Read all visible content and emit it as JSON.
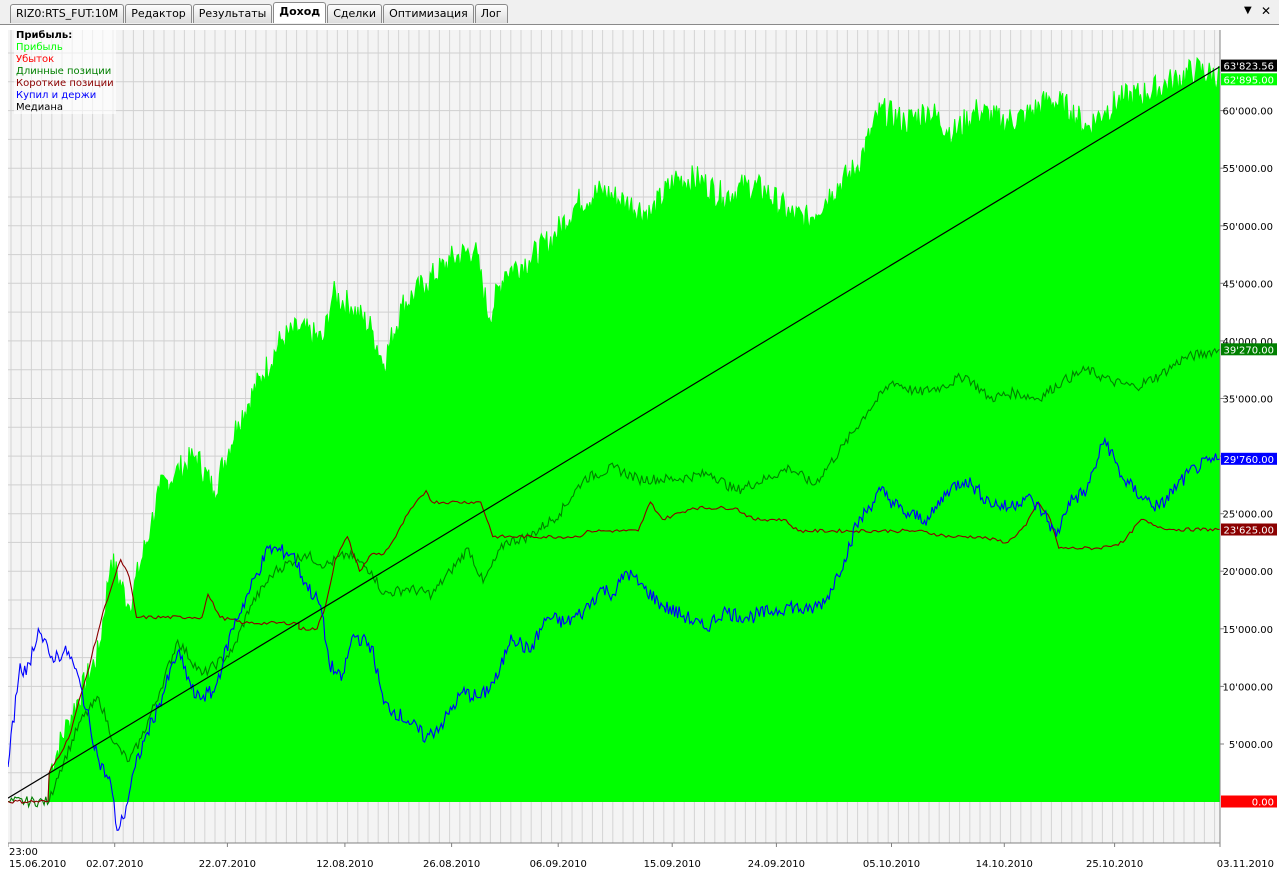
{
  "tabs": [
    {
      "label": "RIZ0:RTS_FUT:10M",
      "active": false
    },
    {
      "label": "Редактор",
      "active": false
    },
    {
      "label": "Результаты",
      "active": false
    },
    {
      "label": "Доход",
      "active": true
    },
    {
      "label": "Сделки",
      "active": false
    },
    {
      "label": "Оптимизация",
      "active": false
    },
    {
      "label": "Лог",
      "active": false
    }
  ],
  "controls": {
    "dropdown_icon": "chevron-down-icon",
    "close_icon": "close-icon"
  },
  "chart_data": {
    "type": "area",
    "legend": {
      "title": "Прибыль:",
      "placement": "top-left",
      "items": [
        {
          "label": "Прибыль",
          "color": "#00ff00"
        },
        {
          "label": "Убыток",
          "color": "#ff0000"
        },
        {
          "label": "Длинные позиции",
          "color": "#008000"
        },
        {
          "label": "Короткие позиции",
          "color": "#8b0000"
        },
        {
          "label": "Купил и держи",
          "color": "#0000ff"
        },
        {
          "label": "Медиана",
          "color": "#000000"
        }
      ]
    },
    "ylim": [
      -3600,
      67000
    ],
    "y_ticks": [
      "5'000.00",
      "10'000.00",
      "15'000.00",
      "20'000.00",
      "25'000.00",
      "30'000.00",
      "35'000.00",
      "40'000.00",
      "45'000.00",
      "50'000.00",
      "55'000.00",
      "60'000.00"
    ],
    "x_time_label": "23:00",
    "x_labels": [
      "15.06.2010",
      "02.07.2010",
      "22.07.2010",
      "12.08.2010",
      "26.08.2010",
      "06.09.2010",
      "15.09.2010",
      "24.09.2010",
      "05.10.2010",
      "14.10.2010",
      "25.10.2010",
      "03.11.2010"
    ],
    "x_positions": [
      0,
      0.088,
      0.181,
      0.278,
      0.366,
      0.454,
      0.548,
      0.634,
      0.729,
      0.822,
      0.913,
      1
    ],
    "last_values": [
      {
        "text": "63'823.56",
        "value": 63823.56,
        "bg": "#000000",
        "fg": "#ffffff"
      },
      {
        "text": "62'895.00",
        "value": 62895,
        "bg": "#00ff00",
        "fg": "#ffffff"
      },
      {
        "text": "39'270.00",
        "value": 39270,
        "bg": "#008000",
        "fg": "#ffffff"
      },
      {
        "text": "29'760.00",
        "value": 29760,
        "bg": "#0000ff",
        "fg": "#ffffff"
      },
      {
        "text": "23'625.00",
        "value": 23625,
        "bg": "#8b0000",
        "fg": "#ffffff"
      },
      {
        "text": "0.00",
        "value": 0,
        "bg": "#ff0000",
        "fg": "#ffffff"
      }
    ],
    "series": [
      {
        "name": "Прибыль",
        "color": "#00ff00",
        "points": [
          [
            0.033,
            0
          ],
          [
            0.034,
            2500
          ],
          [
            0.05,
            7000
          ],
          [
            0.075,
            13000
          ],
          [
            0.085,
            21000
          ],
          [
            0.1,
            17000
          ],
          [
            0.118,
            24000
          ],
          [
            0.125,
            27000
          ],
          [
            0.138,
            28500
          ],
          [
            0.155,
            30000
          ],
          [
            0.17,
            27000
          ],
          [
            0.19,
            33000
          ],
          [
            0.21,
            37000
          ],
          [
            0.225,
            40000
          ],
          [
            0.24,
            41000
          ],
          [
            0.26,
            40000
          ],
          [
            0.268,
            44000
          ],
          [
            0.283,
            43000
          ],
          [
            0.3,
            41000
          ],
          [
            0.31,
            38000
          ],
          [
            0.325,
            43000
          ],
          [
            0.345,
            45000
          ],
          [
            0.365,
            47000
          ],
          [
            0.385,
            48000
          ],
          [
            0.397,
            42000
          ],
          [
            0.41,
            46000
          ],
          [
            0.43,
            47000
          ],
          [
            0.45,
            49000
          ],
          [
            0.47,
            52000
          ],
          [
            0.49,
            53000
          ],
          [
            0.51,
            52000
          ],
          [
            0.53,
            51000
          ],
          [
            0.55,
            54000
          ],
          [
            0.57,
            54000
          ],
          [
            0.59,
            52500
          ],
          [
            0.61,
            53500
          ],
          [
            0.625,
            53000
          ],
          [
            0.645,
            51000
          ],
          [
            0.66,
            50500
          ],
          [
            0.68,
            53000
          ],
          [
            0.7,
            55000
          ],
          [
            0.72,
            60000
          ],
          [
            0.74,
            59000
          ],
          [
            0.76,
            60000
          ],
          [
            0.78,
            58000
          ],
          [
            0.8,
            60000
          ],
          [
            0.82,
            59000
          ],
          [
            0.84,
            59500
          ],
          [
            0.86,
            61000
          ],
          [
            0.877,
            60000
          ],
          [
            0.89,
            58500
          ],
          [
            0.905,
            60000
          ],
          [
            0.92,
            61000
          ],
          [
            0.94,
            61500
          ],
          [
            0.96,
            62500
          ],
          [
            0.98,
            63500
          ],
          [
            1,
            62895
          ]
        ]
      },
      {
        "name": "Длинные позиции",
        "color": "#008000",
        "points": [
          [
            0,
            0
          ],
          [
            0.034,
            0
          ],
          [
            0.04,
            2000
          ],
          [
            0.06,
            7000
          ],
          [
            0.075,
            9000
          ],
          [
            0.088,
            5000
          ],
          [
            0.1,
            3500
          ],
          [
            0.11,
            5500
          ],
          [
            0.125,
            9500
          ],
          [
            0.14,
            14000
          ],
          [
            0.16,
            11000
          ],
          [
            0.185,
            13000
          ],
          [
            0.2,
            17000
          ],
          [
            0.22,
            20000
          ],
          [
            0.245,
            21500
          ],
          [
            0.262,
            20500
          ],
          [
            0.28,
            21500
          ],
          [
            0.3,
            20000
          ],
          [
            0.31,
            18000
          ],
          [
            0.33,
            18500
          ],
          [
            0.35,
            18000
          ],
          [
            0.365,
            20000
          ],
          [
            0.38,
            22000
          ],
          [
            0.392,
            19000
          ],
          [
            0.41,
            22500
          ],
          [
            0.43,
            23000
          ],
          [
            0.455,
            25000
          ],
          [
            0.475,
            28000
          ],
          [
            0.5,
            29000
          ],
          [
            0.52,
            28000
          ],
          [
            0.55,
            28000
          ],
          [
            0.58,
            28500
          ],
          [
            0.6,
            27000
          ],
          [
            0.625,
            28000
          ],
          [
            0.645,
            29000
          ],
          [
            0.665,
            27500
          ],
          [
            0.69,
            31000
          ],
          [
            0.71,
            34000
          ],
          [
            0.73,
            36500
          ],
          [
            0.75,
            35500
          ],
          [
            0.77,
            36000
          ],
          [
            0.79,
            37000
          ],
          [
            0.81,
            35000
          ],
          [
            0.83,
            35500
          ],
          [
            0.85,
            35000
          ],
          [
            0.87,
            36500
          ],
          [
            0.89,
            37500
          ],
          [
            0.91,
            36500
          ],
          [
            0.93,
            36000
          ],
          [
            0.95,
            37000
          ],
          [
            0.97,
            38500
          ],
          [
            1,
            39270
          ]
        ]
      },
      {
        "name": "Короткие позиции",
        "color": "#8b0000",
        "points": [
          [
            0,
            0
          ],
          [
            0.033,
            0
          ],
          [
            0.034,
            2500
          ],
          [
            0.05,
            5500
          ],
          [
            0.065,
            11000
          ],
          [
            0.08,
            17000
          ],
          [
            0.093,
            21000
          ],
          [
            0.1,
            19500
          ],
          [
            0.106,
            16000
          ],
          [
            0.15,
            16000
          ],
          [
            0.16,
            16000
          ],
          [
            0.165,
            18000
          ],
          [
            0.175,
            16000
          ],
          [
            0.195,
            15500
          ],
          [
            0.24,
            15500
          ],
          [
            0.24,
            15000
          ],
          [
            0.255,
            15000
          ],
          [
            0.262,
            17000
          ],
          [
            0.27,
            21000
          ],
          [
            0.28,
            23000
          ],
          [
            0.29,
            20000
          ],
          [
            0.3,
            21500
          ],
          [
            0.31,
            21500
          ],
          [
            0.32,
            23000
          ],
          [
            0.33,
            25000
          ],
          [
            0.345,
            27000
          ],
          [
            0.35,
            26000
          ],
          [
            0.365,
            26000
          ],
          [
            0.39,
            26000
          ],
          [
            0.397,
            24000
          ],
          [
            0.4,
            23000
          ],
          [
            0.47,
            23000
          ],
          [
            0.48,
            23500
          ],
          [
            0.495,
            23500
          ],
          [
            0.51,
            23500
          ],
          [
            0.52,
            23500
          ],
          [
            0.53,
            26000
          ],
          [
            0.54,
            24500
          ],
          [
            0.565,
            25500
          ],
          [
            0.6,
            25500
          ],
          [
            0.615,
            24500
          ],
          [
            0.64,
            24500
          ],
          [
            0.652,
            23500
          ],
          [
            0.7,
            23500
          ],
          [
            0.73,
            23500
          ],
          [
            0.75,
            23500
          ],
          [
            0.778,
            23000
          ],
          [
            0.8,
            23000
          ],
          [
            0.825,
            22500
          ],
          [
            0.84,
            24000
          ],
          [
            0.85,
            26000
          ],
          [
            0.86,
            24500
          ],
          [
            0.867,
            22000
          ],
          [
            0.9,
            22000
          ],
          [
            0.92,
            22500
          ],
          [
            0.935,
            24500
          ],
          [
            0.945,
            24000
          ],
          [
            0.96,
            23625
          ],
          [
            1,
            23625
          ]
        ]
      },
      {
        "name": "Купил и держи",
        "color": "#0000ff",
        "points": [
          [
            0,
            3000
          ],
          [
            0.01,
            12000
          ],
          [
            0.015,
            11000
          ],
          [
            0.025,
            15000
          ],
          [
            0.035,
            12500
          ],
          [
            0.05,
            13000
          ],
          [
            0.06,
            10000
          ],
          [
            0.075,
            3500
          ],
          [
            0.085,
            1500
          ],
          [
            0.09,
            -2500
          ],
          [
            0.095,
            -1500
          ],
          [
            0.105,
            3000
          ],
          [
            0.115,
            6000
          ],
          [
            0.125,
            8500
          ],
          [
            0.14,
            13000
          ],
          [
            0.155,
            9000
          ],
          [
            0.17,
            9500
          ],
          [
            0.185,
            15000
          ],
          [
            0.2,
            18500
          ],
          [
            0.215,
            22000
          ],
          [
            0.235,
            21500
          ],
          [
            0.245,
            19000
          ],
          [
            0.258,
            17000
          ],
          [
            0.265,
            12000
          ],
          [
            0.275,
            10500
          ],
          [
            0.285,
            14500
          ],
          [
            0.3,
            13500
          ],
          [
            0.31,
            8500
          ],
          [
            0.33,
            7000
          ],
          [
            0.345,
            5500
          ],
          [
            0.36,
            7000
          ],
          [
            0.375,
            9500
          ],
          [
            0.39,
            9000
          ],
          [
            0.405,
            11000
          ],
          [
            0.415,
            14500
          ],
          [
            0.43,
            13000
          ],
          [
            0.445,
            16000
          ],
          [
            0.46,
            15500
          ],
          [
            0.475,
            16500
          ],
          [
            0.49,
            18500
          ],
          [
            0.5,
            18000
          ],
          [
            0.51,
            20000
          ],
          [
            0.525,
            18500
          ],
          [
            0.54,
            17000
          ],
          [
            0.56,
            16000
          ],
          [
            0.575,
            15000
          ],
          [
            0.59,
            16500
          ],
          [
            0.61,
            16000
          ],
          [
            0.63,
            16500
          ],
          [
            0.645,
            17000
          ],
          [
            0.66,
            16500
          ],
          [
            0.675,
            17500
          ],
          [
            0.69,
            21000
          ],
          [
            0.7,
            24000
          ],
          [
            0.72,
            27000
          ],
          [
            0.74,
            25000
          ],
          [
            0.76,
            24500
          ],
          [
            0.775,
            27000
          ],
          [
            0.79,
            28000
          ],
          [
            0.81,
            26000
          ],
          [
            0.825,
            25500
          ],
          [
            0.84,
            26500
          ],
          [
            0.855,
            25000
          ],
          [
            0.865,
            23000
          ],
          [
            0.875,
            26000
          ],
          [
            0.89,
            27000
          ],
          [
            0.905,
            31500
          ],
          [
            0.92,
            28000
          ],
          [
            0.935,
            26500
          ],
          [
            0.95,
            25500
          ],
          [
            0.965,
            27500
          ],
          [
            0.98,
            29000
          ],
          [
            1,
            29760
          ]
        ]
      },
      {
        "name": "Медиана",
        "color": "#000000",
        "points": [
          [
            0,
            300
          ],
          [
            1,
            63823.56
          ]
        ]
      }
    ]
  }
}
